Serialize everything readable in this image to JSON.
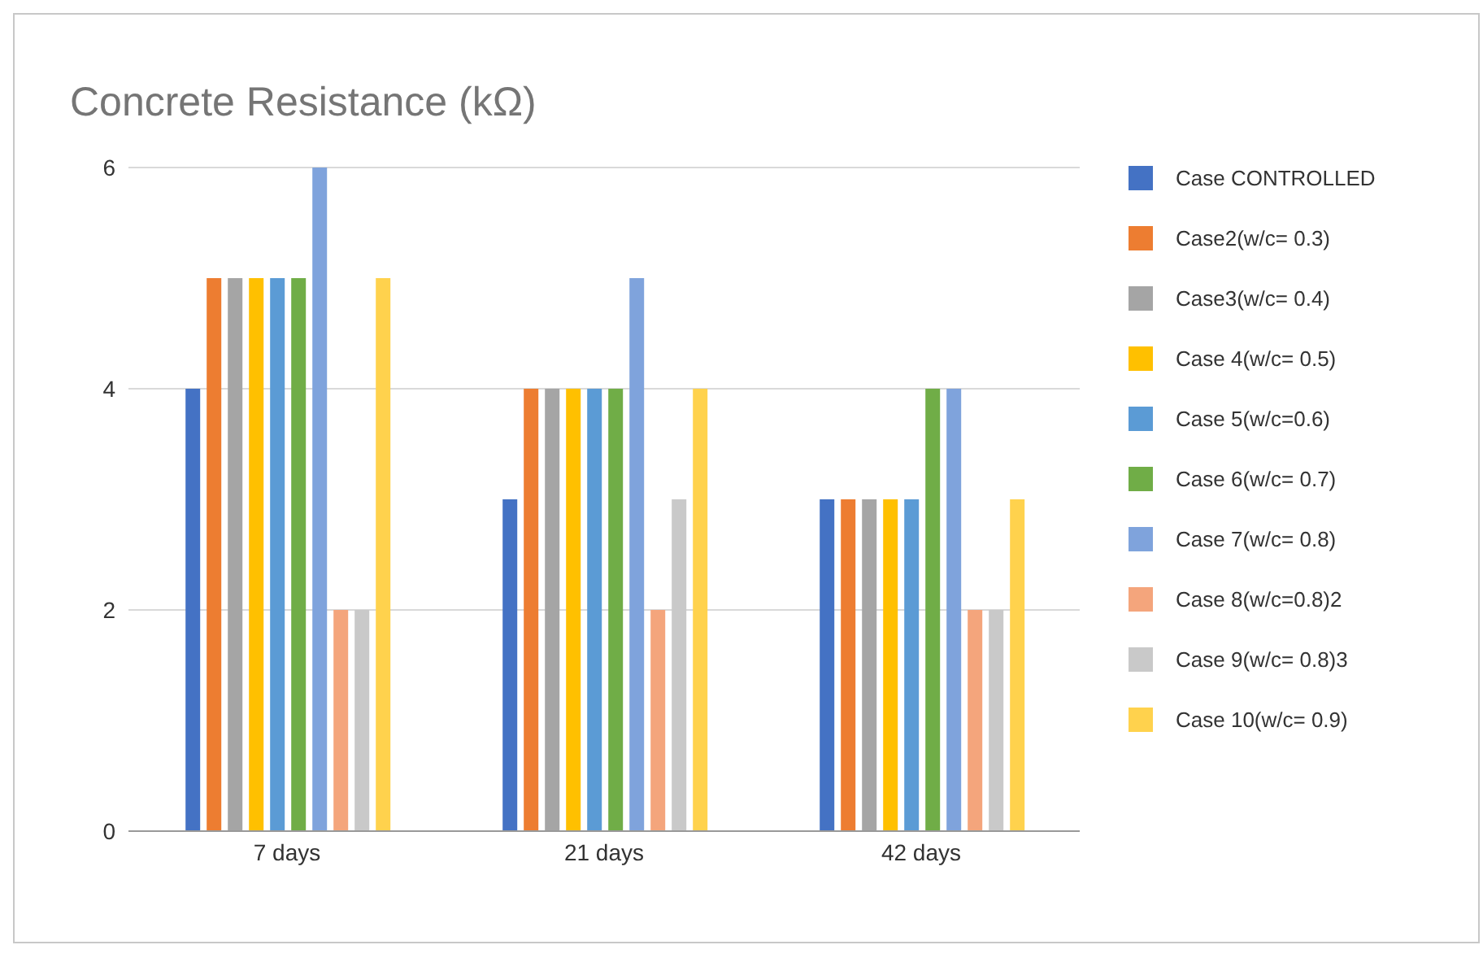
{
  "chart_data": {
    "type": "bar",
    "title": "Concrete Resistance (kΩ)",
    "categories": [
      "7 days",
      "21 days",
      "42 days"
    ],
    "series": [
      {
        "name": "Case CONTROLLED",
        "color": "#4472c4",
        "values": [
          4,
          3,
          3
        ]
      },
      {
        "name": "Case2(w/c= 0.3)",
        "color": "#ed7d31",
        "values": [
          5,
          4,
          3
        ]
      },
      {
        "name": "Case3(w/c= 0.4)",
        "color": "#a5a5a5",
        "values": [
          5,
          4,
          3
        ]
      },
      {
        "name": "Case 4(w/c= 0.5)",
        "color": "#ffc000",
        "values": [
          5,
          4,
          3
        ]
      },
      {
        "name": "Case 5(w/c=0.6)",
        "color": "#5b9bd5",
        "values": [
          5,
          4,
          3
        ]
      },
      {
        "name": "Case 6(w/c= 0.7)",
        "color": "#70ad47",
        "values": [
          5,
          4,
          4
        ]
      },
      {
        "name": "Case 7(w/c= 0.8)",
        "color": "#7fa3dc",
        "values": [
          6,
          5,
          4
        ]
      },
      {
        "name": "Case 8(w/c=0.8)2",
        "color": "#f4a57c",
        "values": [
          2,
          2,
          2
        ]
      },
      {
        "name": "Case 9(w/c= 0.8)3",
        "color": "#c9c9c9",
        "values": [
          2,
          3,
          2
        ]
      },
      {
        "name": "Case 10(w/c= 0.9)",
        "color": "#ffd24d",
        "values": [
          5,
          4,
          3
        ]
      }
    ],
    "ylim": [
      0,
      6
    ],
    "yticks": [
      0,
      2,
      4,
      6
    ],
    "grid": "y",
    "legend": "right"
  }
}
